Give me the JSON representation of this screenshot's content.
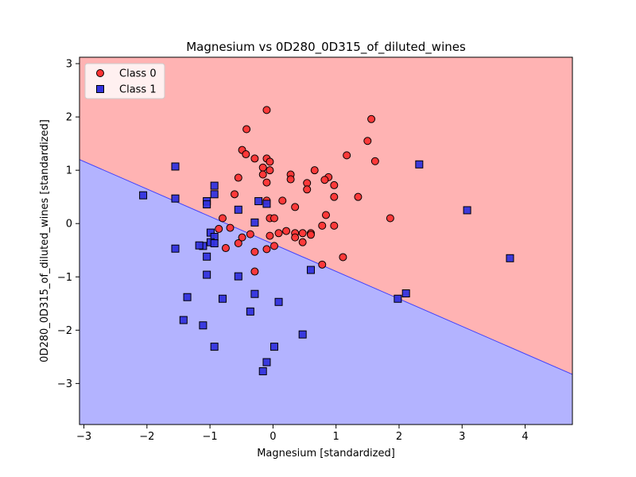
{
  "chart_data": {
    "type": "scatter",
    "title": "Magnesium vs 0D280_0D315_of_diluted_wines",
    "xlabel": "Magnesium [standardized]",
    "ylabel": "0D280_0D315_of_diluted_wines [standardized]",
    "xlim": [
      -3.07,
      4.75
    ],
    "ylim": [
      -3.77,
      3.12
    ],
    "xticks": [
      -3,
      -2,
      -1,
      0,
      1,
      2,
      3,
      4
    ],
    "yticks": [
      -3,
      -2,
      -1,
      0,
      1,
      2,
      3
    ],
    "grid": false,
    "legend_position": "top-left",
    "decision_boundary": {
      "x": [
        -3.07,
        4.75
      ],
      "y": [
        1.2,
        -2.83
      ]
    },
    "regions": [
      {
        "name": "Class 0",
        "color": "#ffb3b3"
      },
      {
        "name": "Class 1",
        "color": "#b3b3ff"
      }
    ],
    "series": [
      {
        "name": "Class 0",
        "marker": "circle",
        "color": "#ff3333",
        "points": [
          [
            -0.1,
            2.13
          ],
          [
            1.56,
            1.96
          ],
          [
            -0.42,
            1.77
          ],
          [
            1.5,
            1.55
          ],
          [
            -0.49,
            1.38
          ],
          [
            -0.43,
            1.3
          ],
          [
            -0.29,
            1.22
          ],
          [
            -0.1,
            1.22
          ],
          [
            -0.05,
            1.16
          ],
          [
            1.17,
            1.28
          ],
          [
            1.62,
            1.17
          ],
          [
            -0.16,
            1.05
          ],
          [
            -0.05,
            1.0
          ],
          [
            -0.16,
            0.92
          ],
          [
            0.28,
            0.92
          ],
          [
            0.28,
            0.83
          ],
          [
            0.66,
            1.0
          ],
          [
            0.88,
            0.87
          ],
          [
            0.82,
            0.82
          ],
          [
            0.54,
            0.76
          ],
          [
            0.97,
            0.72
          ],
          [
            -0.55,
            0.86
          ],
          [
            -0.1,
            0.77
          ],
          [
            0.54,
            0.64
          ],
          [
            -0.61,
            0.55
          ],
          [
            0.97,
            0.5
          ],
          [
            1.35,
            0.5
          ],
          [
            -0.1,
            0.43
          ],
          [
            0.15,
            0.43
          ],
          [
            0.35,
            0.31
          ],
          [
            -0.05,
            0.1
          ],
          [
            0.02,
            0.1
          ],
          [
            0.84,
            0.16
          ],
          [
            1.86,
            0.1
          ],
          [
            -0.8,
            0.1
          ],
          [
            -0.68,
            -0.08
          ],
          [
            -0.86,
            -0.1
          ],
          [
            0.78,
            -0.04
          ],
          [
            0.97,
            -0.04
          ],
          [
            0.21,
            -0.14
          ],
          [
            0.09,
            -0.18
          ],
          [
            0.35,
            -0.18
          ],
          [
            0.47,
            -0.18
          ],
          [
            0.6,
            -0.18
          ],
          [
            0.6,
            -0.21
          ],
          [
            -0.05,
            -0.23
          ],
          [
            0.35,
            -0.26
          ],
          [
            -0.36,
            -0.2
          ],
          [
            -0.49,
            -0.26
          ],
          [
            -0.55,
            -0.37
          ],
          [
            0.47,
            -0.35
          ],
          [
            0.02,
            -0.42
          ],
          [
            -0.75,
            -0.46
          ],
          [
            -0.29,
            -0.53
          ],
          [
            -0.1,
            -0.48
          ],
          [
            1.11,
            -0.63
          ],
          [
            0.78,
            -0.77
          ],
          [
            -0.29,
            -0.9
          ]
        ]
      },
      {
        "name": "Class 1",
        "marker": "square",
        "color": "#3333dd",
        "points": [
          [
            -1.55,
            1.07
          ],
          [
            2.32,
            1.11
          ],
          [
            -0.93,
            0.71
          ],
          [
            -2.06,
            0.53
          ],
          [
            -1.55,
            0.47
          ],
          [
            -0.93,
            0.55
          ],
          [
            -1.05,
            0.42
          ],
          [
            -1.05,
            0.36
          ],
          [
            -0.23,
            0.42
          ],
          [
            -0.1,
            0.37
          ],
          [
            -0.55,
            0.26
          ],
          [
            3.08,
            0.25
          ],
          [
            -0.29,
            0.02
          ],
          [
            -0.99,
            -0.17
          ],
          [
            -0.93,
            -0.25
          ],
          [
            -0.99,
            -0.35
          ],
          [
            -0.93,
            -0.37
          ],
          [
            -1.11,
            -0.42
          ],
          [
            -1.17,
            -0.41
          ],
          [
            -1.55,
            -0.47
          ],
          [
            -1.05,
            -0.62
          ],
          [
            3.76,
            -0.65
          ],
          [
            0.6,
            -0.87
          ],
          [
            -1.05,
            -0.96
          ],
          [
            -0.55,
            -0.99
          ],
          [
            2.11,
            -1.31
          ],
          [
            -0.29,
            -1.32
          ],
          [
            -1.36,
            -1.38
          ],
          [
            -0.8,
            -1.41
          ],
          [
            1.98,
            -1.41
          ],
          [
            0.09,
            -1.47
          ],
          [
            -0.36,
            -1.65
          ],
          [
            -1.42,
            -1.81
          ],
          [
            -1.11,
            -1.91
          ],
          [
            0.47,
            -2.08
          ],
          [
            -0.93,
            -2.31
          ],
          [
            0.02,
            -2.31
          ],
          [
            -0.1,
            -2.6
          ],
          [
            -0.16,
            -2.77
          ]
        ]
      }
    ]
  }
}
